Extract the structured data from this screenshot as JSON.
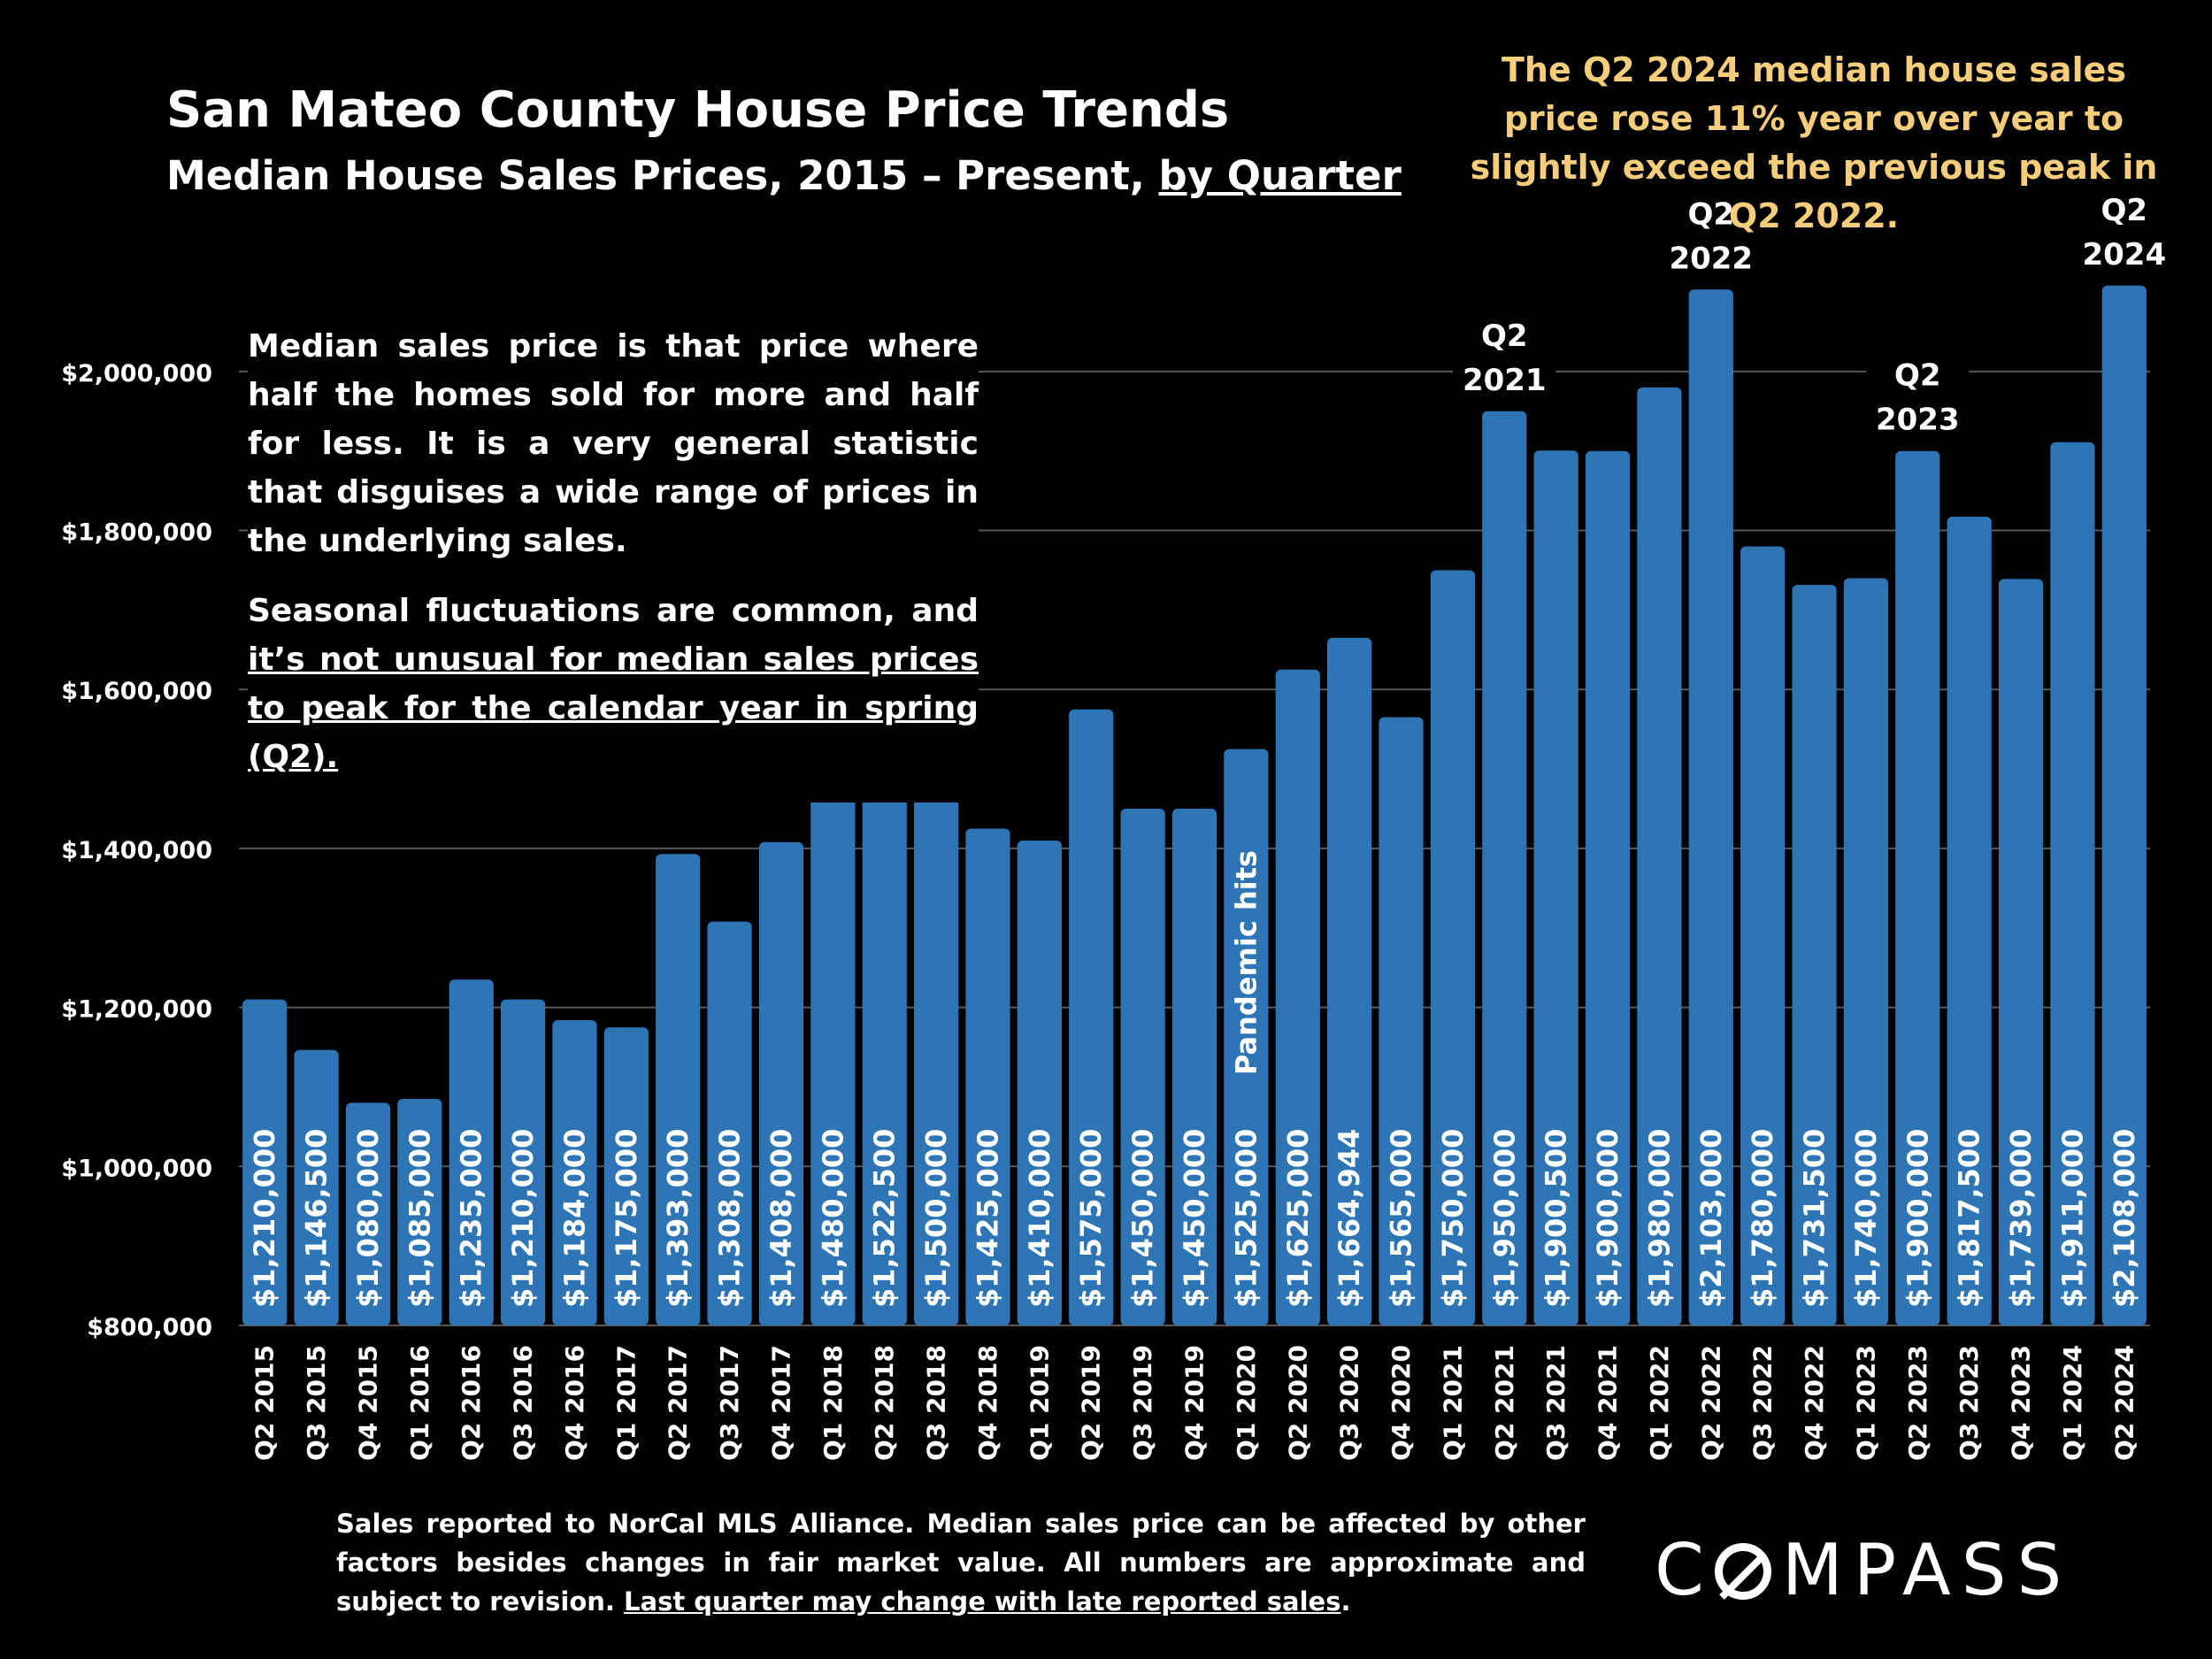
{
  "header": {
    "title": "San Mateo County House Price Trends",
    "subtitle_main": "Median House Sales Prices, 2015 – Present, ",
    "subtitle_link": "by Quarter"
  },
  "callout": "The Q2 2024 median house sales price rose 11% year over year to slightly exceed the previous peak in Q2 2022.",
  "notes": {
    "p1": "Median sales price is that price where half the homes sold for more and half for less. It is a very general statistic that disguises a wide range of prices in the underlying sales.",
    "p2_main": "Seasonal fluctuations are common, and ",
    "p2_underlined": "it’s not unusual for median sales prices to peak for the calendar year in spring (Q2)."
  },
  "footnote": {
    "main": "Sales reported to NorCal MLS Alliance. Median sales price can be affected by other factors besides changes in fair market value. All numbers are approximate and subject to revision. ",
    "underlined": "Last quarter may change with late reported sales",
    "end": "."
  },
  "logo": {
    "letters": "MPASS",
    "prefix": "C"
  },
  "colors": {
    "bar": "#2e75b6",
    "callout": "#f6cd7a",
    "background": "#000000",
    "grid": "#595959"
  },
  "chart_data": {
    "type": "bar",
    "categories": [
      "Q2 2015",
      "Q3 2015",
      "Q4 2015",
      "Q1 2016",
      "Q2 2016",
      "Q3 2016",
      "Q4 2016",
      "Q1 2017",
      "Q2 2017",
      "Q3 2017",
      "Q4 2017",
      "Q1 2018",
      "Q2 2018",
      "Q3 2018",
      "Q4 2018",
      "Q1 2019",
      "Q2 2019",
      "Q3 2019",
      "Q4 2019",
      "Q1 2020",
      "Q2 2020",
      "Q3 2020",
      "Q4 2020",
      "Q1 2021",
      "Q2 2021",
      "Q3 2021",
      "Q4 2021",
      "Q1 2022",
      "Q2 2022",
      "Q3 2022",
      "Q4 2022",
      "Q1 2023",
      "Q2 2023",
      "Q3 2023",
      "Q4 2023",
      "Q1 2024",
      "Q2 2024"
    ],
    "values": [
      1210000,
      1146500,
      1080000,
      1085000,
      1235000,
      1210000,
      1184000,
      1175000,
      1393000,
      1308000,
      1408000,
      1480000,
      1522500,
      1500000,
      1425000,
      1410000,
      1575000,
      1450000,
      1450000,
      1525000,
      1625000,
      1664944,
      1565000,
      1750000,
      1950000,
      1900500,
      1900000,
      1980000,
      2103000,
      1780000,
      1731500,
      1740000,
      1900000,
      1817500,
      1739000,
      1911000,
      2108000
    ],
    "value_labels": [
      "$1,210,000",
      "$1,146,500",
      "$1,080,000",
      "$1,085,000",
      "$1,235,000",
      "$1,210,000",
      "$1,184,000",
      "$1,175,000",
      "$1,393,000",
      "$1,308,000",
      "$1,408,000",
      "$1,480,000",
      "$1,522,500",
      "$1,500,000",
      "$1,425,000",
      "$1,410,000",
      "$1,575,000",
      "$1,450,000",
      "$1,450,000",
      "$1,525,000",
      "$1,625,000",
      "$1,664,944",
      "$1,565,000",
      "$1,750,000",
      "$1,950,000",
      "$1,900,500",
      "$1,900,000",
      "$1,980,000",
      "$2,103,000",
      "$1,780,000",
      "$1,731,500",
      "$1,740,000",
      "$1,900,000",
      "$1,817,500",
      "$1,739,000",
      "$1,911,000",
      "$2,108,000"
    ],
    "ylim": [
      800000,
      2100000
    ],
    "yticks": [
      800000,
      1000000,
      1200000,
      1400000,
      1600000,
      1800000,
      2000000
    ],
    "ytick_labels": [
      "$800,000",
      "$1,000,000",
      "$1,200,000",
      "$1,400,000",
      "$1,600,000",
      "$1,800,000",
      "$2,000,000"
    ],
    "grid": true,
    "annotations": [
      {
        "category": "Q2 2021",
        "line1": "Q2",
        "line2": "2021"
      },
      {
        "category": "Q2 2022",
        "line1": "Q2",
        "line2": "2022"
      },
      {
        "category": "Q2 2023",
        "line1": "Q2",
        "line2": "2023"
      },
      {
        "category": "Q2 2024",
        "line1": "Q2",
        "line2": "2024"
      }
    ],
    "event_label": {
      "category": "Q1 2020",
      "text": "Pandemic hits"
    }
  }
}
